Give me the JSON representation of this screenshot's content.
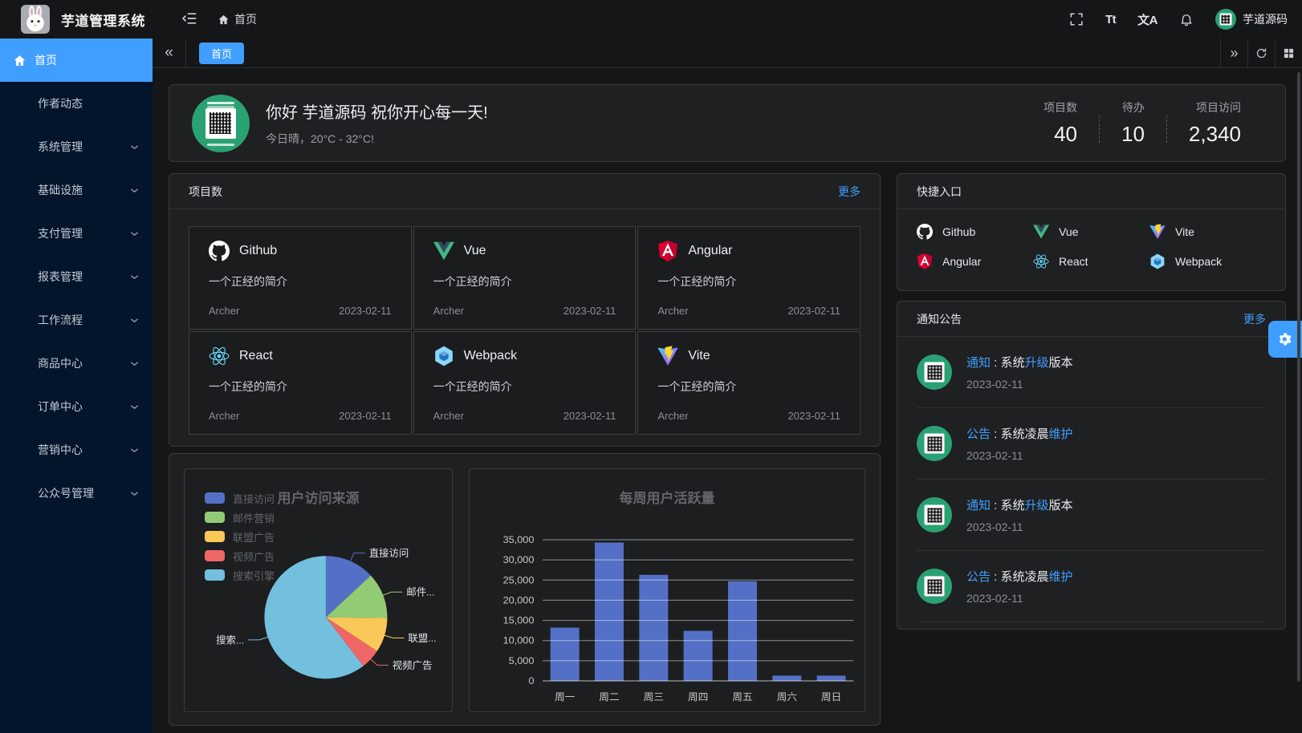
{
  "header": {
    "app_title": "芋道管理系统",
    "breadcrumb_home": "首页",
    "font_size_icon_text": "Tt",
    "language_icon_text": "文A",
    "username": "芋道源码"
  },
  "tabbar": {
    "collapse_glyph": "«",
    "expand_glyph": "»",
    "tabs": [
      {
        "label": "首页",
        "active": true
      }
    ]
  },
  "sidebar": {
    "items": [
      {
        "label": "首页",
        "active": true,
        "icon": "home"
      },
      {
        "label": "作者动态"
      },
      {
        "label": "系统管理",
        "expandable": true
      },
      {
        "label": "基础设施",
        "expandable": true
      },
      {
        "label": "支付管理",
        "expandable": true
      },
      {
        "label": "报表管理",
        "expandable": true
      },
      {
        "label": "工作流程",
        "expandable": true
      },
      {
        "label": "商品中心",
        "expandable": true
      },
      {
        "label": "订单中心",
        "expandable": true
      },
      {
        "label": "营销中心",
        "expandable": true
      },
      {
        "label": "公众号管理",
        "expandable": true
      }
    ]
  },
  "welcome": {
    "greeting": "你好 芋道源码 祝你开心每一天!",
    "weather": "今日晴，20°C - 32°C!",
    "stats": [
      {
        "label": "项目数",
        "value": "40"
      },
      {
        "label": "待办",
        "value": "10"
      },
      {
        "label": "项目访问",
        "value": "2,340"
      }
    ]
  },
  "projects": {
    "title": "项目数",
    "more_label": "更多",
    "items": [
      {
        "name": "Github",
        "icon": "github",
        "desc": "一个正经的简介",
        "author": "Archer",
        "date": "2023-02-11"
      },
      {
        "name": "Vue",
        "icon": "vue",
        "desc": "一个正经的简介",
        "author": "Archer",
        "date": "2023-02-11"
      },
      {
        "name": "Angular",
        "icon": "angular",
        "desc": "一个正经的简介",
        "author": "Archer",
        "date": "2023-02-11"
      },
      {
        "name": "React",
        "icon": "react",
        "desc": "一个正经的简介",
        "author": "Archer",
        "date": "2023-02-11"
      },
      {
        "name": "Webpack",
        "icon": "webpack",
        "desc": "一个正经的简介",
        "author": "Archer",
        "date": "2023-02-11"
      },
      {
        "name": "Vite",
        "icon": "vite",
        "desc": "一个正经的简介",
        "author": "Archer",
        "date": "2023-02-11"
      }
    ]
  },
  "shortcuts": {
    "title": "快捷入口",
    "items": [
      {
        "name": "Github",
        "icon": "github"
      },
      {
        "name": "Vue",
        "icon": "vue"
      },
      {
        "name": "Vite",
        "icon": "vite"
      },
      {
        "name": "Angular",
        "icon": "angular"
      },
      {
        "name": "React",
        "icon": "react"
      },
      {
        "name": "Webpack",
        "icon": "webpack"
      }
    ]
  },
  "notices": {
    "title": "通知公告",
    "more_label": "更多",
    "items": [
      {
        "tag": "通知",
        "mid": " : 系统",
        "hl": "升级",
        "tail": "版本",
        "date": "2023-02-11"
      },
      {
        "tag": "公告",
        "mid": " : 系统凌晨",
        "hl": "维护",
        "tail": "",
        "date": "2023-02-11"
      },
      {
        "tag": "通知",
        "mid": " : 系统",
        "hl": "升级",
        "tail": "版本",
        "date": "2023-02-11"
      },
      {
        "tag": "公告",
        "mid": " : 系统凌晨",
        "hl": "维护",
        "tail": "",
        "date": "2023-02-11"
      }
    ]
  },
  "colors": {
    "accent": "#409eff",
    "sidebar_bg": "#02152b",
    "card_bg": "#1f2022"
  },
  "chart_data": [
    {
      "type": "pie",
      "title": "用户访问来源",
      "legend_position": "top-left",
      "legend": [
        "直接访问",
        "邮件营销",
        "联盟广告",
        "视频广告",
        "搜索引擎"
      ],
      "series": [
        {
          "name": "直接访问",
          "value": 335
        },
        {
          "name": "邮件营销",
          "value": 310
        },
        {
          "name": "联盟广告",
          "value": 234
        },
        {
          "name": "视频广告",
          "value": 135
        },
        {
          "name": "搜索引擎",
          "value": 1548
        }
      ],
      "labels": [
        "直接访问",
        "邮件...",
        "联盟...",
        "视频广告",
        "搜索..."
      ],
      "colors": [
        "#5470c6",
        "#91cc75",
        "#fac858",
        "#ee6666",
        "#73c0de"
      ]
    },
    {
      "type": "bar",
      "title": "每周用户活跃量",
      "categories": [
        "周一",
        "周二",
        "周三",
        "周四",
        "周五",
        "周六",
        "周日"
      ],
      "values": [
        13200,
        34300,
        26300,
        12400,
        24700,
        1300,
        1300
      ],
      "xlabel": "",
      "ylabel": "",
      "ylim": [
        0,
        35000
      ],
      "ytick_interval": 5000,
      "grid": true,
      "bar_color": "#5470c6"
    }
  ]
}
